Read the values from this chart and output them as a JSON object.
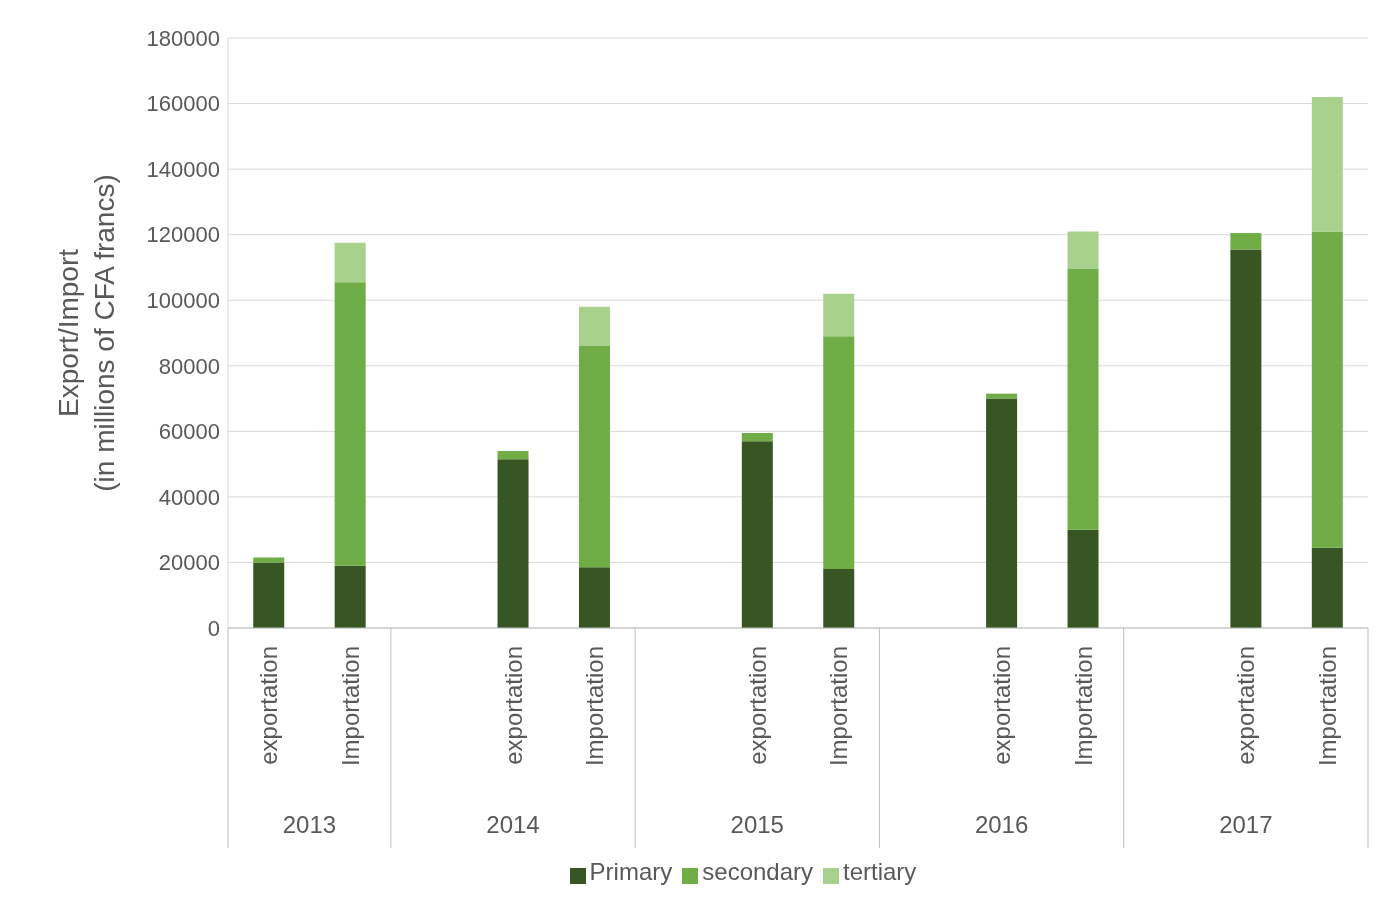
{
  "chart_data": {
    "type": "bar",
    "stacked": true,
    "ylabel": "Export/Import\n(in millions of CFA francs)",
    "categories": [
      "exportation",
      "Importation",
      null,
      "exportation",
      "Importation",
      null,
      "exportation",
      "Importation",
      null,
      "exportation",
      "Importation",
      null,
      "exportation",
      "Importation"
    ],
    "annotations": [
      "2013",
      "2014",
      "2015",
      "2016",
      "2017"
    ],
    "series": [
      {
        "name": "Primary",
        "color": "#375623",
        "values": [
          20000,
          19000,
          null,
          51500,
          18500,
          null,
          57000,
          18000,
          null,
          70000,
          30000,
          null,
          115500,
          24500
        ]
      },
      {
        "name": "secondary",
        "color": "#70ad47",
        "values": [
          1500,
          86500,
          null,
          2500,
          67500,
          null,
          2500,
          71000,
          null,
          1500,
          79500,
          null,
          5000,
          96500
        ]
      },
      {
        "name": "tertiary",
        "color": "#a9d18e",
        "values": [
          null,
          12000,
          null,
          null,
          12000,
          null,
          null,
          13000,
          null,
          null,
          11500,
          null,
          null,
          41000
        ]
      }
    ],
    "ylim": [
      0,
      180000
    ],
    "yticks": [
      0,
      20000,
      40000,
      60000,
      80000,
      100000,
      120000,
      140000,
      160000,
      180000
    ],
    "grid": "y",
    "legend": "bottom"
  }
}
